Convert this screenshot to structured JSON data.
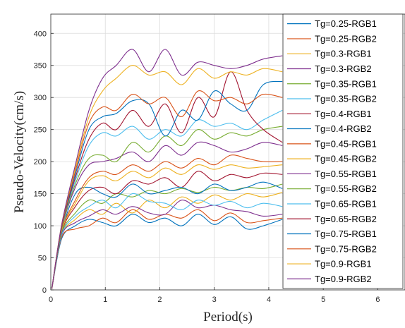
{
  "chart_data": {
    "type": "line",
    "xlabel": "Period(s)",
    "ylabel": "Pseudo-Velocity(cm/s)",
    "xlim": [
      0,
      6.5
    ],
    "ylim": [
      0,
      430
    ],
    "xticks": [
      0,
      1,
      2,
      3,
      4,
      5,
      6
    ],
    "yticks": [
      0,
      50,
      100,
      150,
      200,
      250,
      300,
      350,
      400
    ],
    "grid": true,
    "legend_position": "top-right, overlapping the plot and extending past the frame",
    "series": [
      {
        "name": "Tg=0.25-RGB1",
        "color": "#0072BD",
        "x": [
          0.02,
          0.2,
          0.45,
          0.7,
          0.95,
          1.2,
          1.5,
          1.8,
          2.1,
          2.4,
          2.7,
          3.0,
          3.3,
          3.6,
          3.9,
          4.25
        ],
        "y": [
          2,
          80,
          100,
          110,
          105,
          100,
          118,
          105,
          112,
          100,
          118,
          102,
          114,
          95,
          100,
          110
        ]
      },
      {
        "name": "Tg=0.25-RGB2",
        "color": "#D95319",
        "x": [
          0.02,
          0.2,
          0.45,
          0.7,
          0.95,
          1.2,
          1.5,
          1.8,
          2.1,
          2.4,
          2.7,
          3.0,
          3.3,
          3.6,
          3.9,
          4.25
        ],
        "y": [
          2,
          82,
          95,
          100,
          112,
          105,
          125,
          110,
          118,
          112,
          125,
          108,
          120,
          105,
          108,
          112
        ]
      },
      {
        "name": "Tg=0.3-RGB1",
        "color": "#EDB120",
        "x": [
          0.02,
          0.2,
          0.45,
          0.7,
          0.95,
          1.2,
          1.5,
          1.8,
          2.1,
          2.4,
          2.7,
          3.0,
          3.3,
          3.6,
          3.9,
          4.25
        ],
        "y": [
          2,
          85,
          110,
          125,
          118,
          135,
          120,
          140,
          128,
          145,
          135,
          148,
          140,
          150,
          145,
          152
        ]
      },
      {
        "name": "Tg=0.3-RGB2",
        "color": "#7E2F8E",
        "x": [
          0.02,
          0.2,
          0.45,
          0.7,
          0.95,
          1.2,
          1.5,
          1.8,
          2.1,
          2.4,
          2.7,
          3.0,
          3.3,
          3.6,
          3.9,
          4.25
        ],
        "y": [
          2,
          85,
          105,
          115,
          125,
          118,
          130,
          120,
          118,
          140,
          128,
          132,
          125,
          122,
          115,
          118
        ]
      },
      {
        "name": "Tg=0.35-RGB1",
        "color": "#77AC30",
        "x": [
          0.02,
          0.2,
          0.45,
          0.7,
          0.95,
          1.2,
          1.5,
          1.8,
          2.1,
          2.4,
          2.7,
          3.0,
          3.3,
          3.6,
          3.9,
          4.25
        ],
        "y": [
          2,
          88,
          120,
          140,
          135,
          150,
          145,
          155,
          150,
          158,
          152,
          160,
          155,
          160,
          158,
          165
        ]
      },
      {
        "name": "Tg=0.35-RGB2",
        "color": "#4DBEEE",
        "x": [
          0.02,
          0.2,
          0.45,
          0.7,
          0.95,
          1.2,
          1.5,
          1.8,
          2.1,
          2.4,
          2.7,
          3.0,
          3.3,
          3.6,
          3.9,
          4.25
        ],
        "y": [
          2,
          86,
          115,
          130,
          140,
          128,
          150,
          138,
          135,
          125,
          140,
          132,
          138,
          128,
          135,
          130
        ]
      },
      {
        "name": "Tg=0.4-RGB1",
        "color": "#A2142F",
        "x": [
          0.02,
          0.2,
          0.45,
          0.7,
          0.95,
          1.2,
          1.5,
          1.8,
          2.1,
          2.4,
          2.7,
          3.0,
          3.3,
          3.6,
          3.9,
          4.25
        ],
        "y": [
          2,
          90,
          130,
          155,
          160,
          150,
          170,
          165,
          175,
          160,
          185,
          170,
          180,
          175,
          182,
          180
        ]
      },
      {
        "name": "Tg=0.4-RGB2",
        "color": "#0072BD",
        "x": [
          0.02,
          0.2,
          0.45,
          0.7,
          0.95,
          1.2,
          1.5,
          1.8,
          2.1,
          2.4,
          2.7,
          3.0,
          3.3,
          3.6,
          3.9,
          4.25
        ],
        "y": [
          2,
          90,
          150,
          160,
          150,
          145,
          165,
          150,
          155,
          160,
          150,
          165,
          155,
          160,
          168,
          158
        ]
      },
      {
        "name": "Tg=0.45-RGB1",
        "color": "#D95319",
        "x": [
          0.02,
          0.2,
          0.45,
          0.7,
          0.95,
          1.2,
          1.5,
          1.8,
          2.1,
          2.4,
          2.7,
          3.0,
          3.3,
          3.6,
          3.9,
          4.25
        ],
        "y": [
          2,
          92,
          140,
          175,
          185,
          180,
          195,
          185,
          200,
          190,
          205,
          195,
          210,
          205,
          200,
          200
        ]
      },
      {
        "name": "Tg=0.45-RGB2",
        "color": "#EDB120",
        "x": [
          0.02,
          0.2,
          0.45,
          0.7,
          0.95,
          1.2,
          1.5,
          1.8,
          2.1,
          2.4,
          2.7,
          3.0,
          3.3,
          3.6,
          3.9,
          4.25
        ],
        "y": [
          2,
          92,
          135,
          170,
          178,
          170,
          185,
          175,
          190,
          180,
          195,
          188,
          195,
          190,
          192,
          195
        ]
      },
      {
        "name": "Tg=0.55-RGB1",
        "color": "#7E2F8E",
        "x": [
          0.02,
          0.2,
          0.45,
          0.7,
          0.95,
          1.2,
          1.5,
          1.8,
          2.1,
          2.4,
          2.7,
          3.0,
          3.3,
          3.6,
          3.9,
          4.25
        ],
        "y": [
          2,
          95,
          160,
          195,
          200,
          205,
          215,
          200,
          225,
          210,
          230,
          225,
          215,
          220,
          230,
          225
        ]
      },
      {
        "name": "Tg=0.55-RGB2",
        "color": "#77AC30",
        "x": [
          0.02,
          0.2,
          0.45,
          0.7,
          0.95,
          1.2,
          1.5,
          1.8,
          2.1,
          2.4,
          2.7,
          3.0,
          3.3,
          3.6,
          3.9,
          4.25
        ],
        "y": [
          2,
          95,
          165,
          205,
          210,
          200,
          230,
          215,
          240,
          225,
          250,
          235,
          245,
          240,
          250,
          255
        ]
      },
      {
        "name": "Tg=0.65-RGB1",
        "color": "#4DBEEE",
        "x": [
          0.02,
          0.2,
          0.45,
          0.7,
          0.95,
          1.2,
          1.5,
          1.8,
          2.1,
          2.4,
          2.7,
          3.0,
          3.3,
          3.6,
          3.9,
          4.25
        ],
        "y": [
          2,
          98,
          170,
          225,
          245,
          240,
          255,
          235,
          250,
          240,
          265,
          255,
          260,
          250,
          265,
          280
        ]
      },
      {
        "name": "Tg=0.65-RGB2",
        "color": "#A2142F",
        "x": [
          0.02,
          0.2,
          0.45,
          0.7,
          0.95,
          1.2,
          1.5,
          1.8,
          2.1,
          2.4,
          2.7,
          3.0,
          3.3,
          3.6,
          3.9,
          4.25
        ],
        "y": [
          2,
          98,
          175,
          235,
          260,
          250,
          280,
          255,
          290,
          245,
          300,
          270,
          340,
          280,
          250,
          230
        ]
      },
      {
        "name": "Tg=0.75-RGB1",
        "color": "#0072BD",
        "x": [
          0.02,
          0.2,
          0.45,
          0.7,
          0.95,
          1.2,
          1.5,
          1.8,
          2.1,
          2.4,
          2.7,
          3.0,
          3.3,
          3.6,
          3.9,
          4.25
        ],
        "y": [
          2,
          100,
          180,
          250,
          270,
          275,
          295,
          290,
          240,
          280,
          265,
          310,
          290,
          280,
          320,
          325
        ]
      },
      {
        "name": "Tg=0.75-RGB2",
        "color": "#D95319",
        "x": [
          0.02,
          0.2,
          0.45,
          0.7,
          0.95,
          1.2,
          1.5,
          1.8,
          2.1,
          2.4,
          2.7,
          3.0,
          3.3,
          3.6,
          3.9,
          4.25
        ],
        "y": [
          2,
          100,
          185,
          260,
          285,
          280,
          305,
          290,
          300,
          270,
          310,
          295,
          300,
          290,
          305,
          300
        ]
      },
      {
        "name": "Tg=0.9-RGB1",
        "color": "#EDB120",
        "x": [
          0.02,
          0.2,
          0.45,
          0.7,
          0.95,
          1.2,
          1.5,
          1.8,
          2.1,
          2.4,
          2.7,
          3.0,
          3.3,
          3.6,
          3.9,
          4.25
        ],
        "y": [
          2,
          102,
          190,
          270,
          310,
          330,
          350,
          335,
          340,
          320,
          345,
          330,
          340,
          335,
          345,
          340
        ]
      },
      {
        "name": "Tg=0.9-RGB2",
        "color": "#7E2F8E",
        "x": [
          0.02,
          0.2,
          0.45,
          0.7,
          0.95,
          1.2,
          1.5,
          1.8,
          2.1,
          2.4,
          2.7,
          3.0,
          3.3,
          3.6,
          3.9,
          4.25
        ],
        "y": [
          2,
          102,
          195,
          280,
          330,
          350,
          375,
          340,
          375,
          335,
          355,
          350,
          345,
          350,
          360,
          365
        ]
      }
    ]
  }
}
